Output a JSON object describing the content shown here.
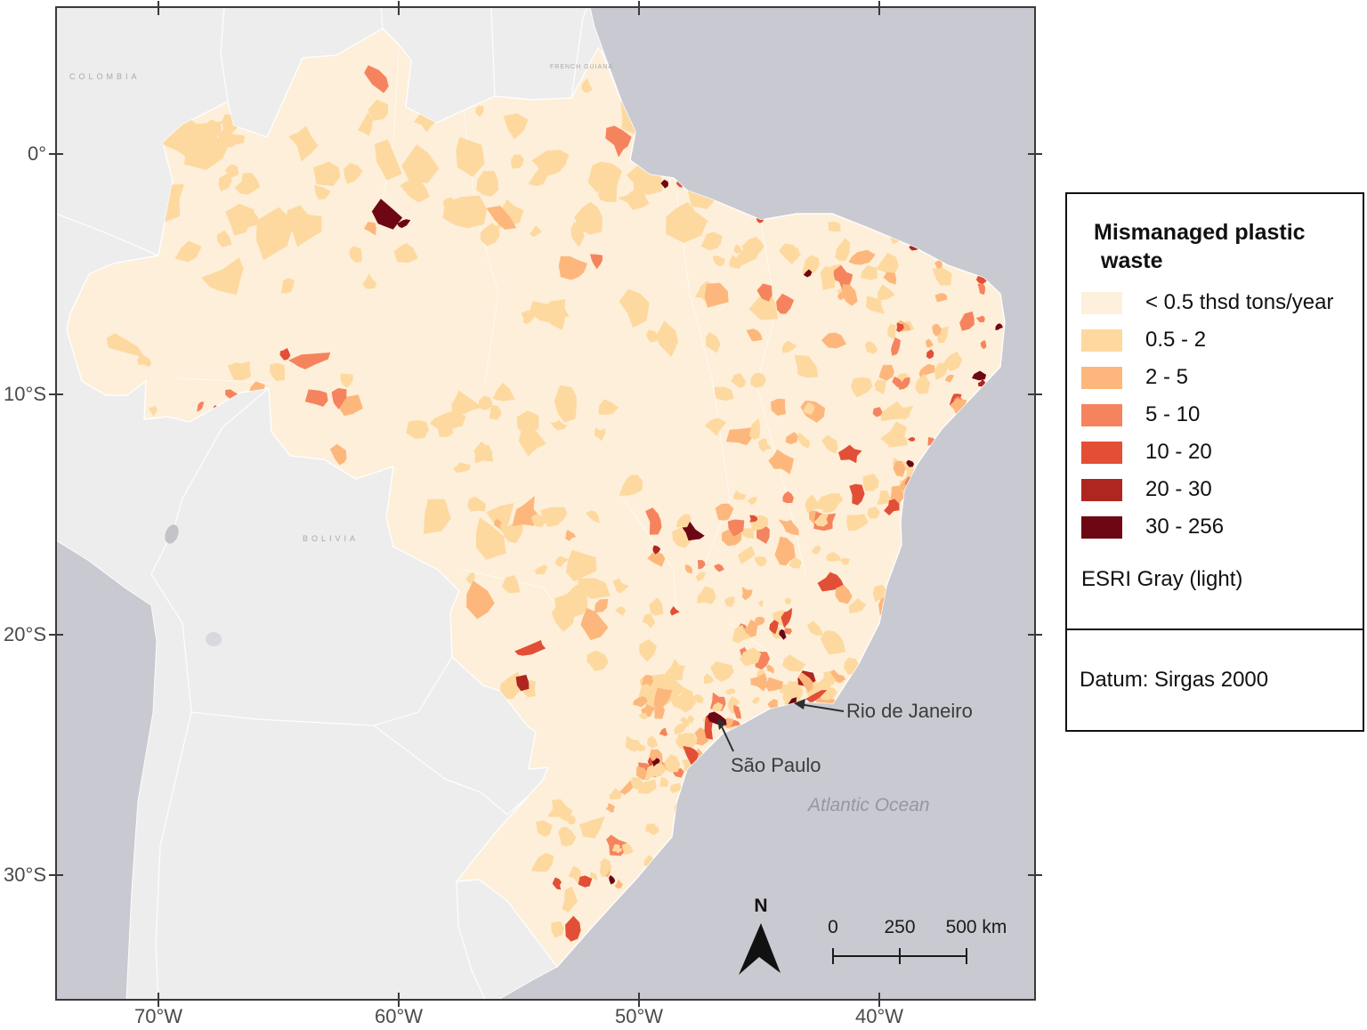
{
  "legend": {
    "title": "Mismanaged plastic waste",
    "classes": [
      {
        "label": "< 0.5 thsd tons/year",
        "color": "#fdf0dc"
      },
      {
        "label": "0.5 - 2",
        "color": "#fdd9a0"
      },
      {
        "label": "2 - 5",
        "color": "#fdb77c"
      },
      {
        "label": "5 - 10",
        "color": "#f5845e"
      },
      {
        "label": "10 - 20",
        "color": "#e24f36"
      },
      {
        "label": "20 - 30",
        "color": "#af2620"
      },
      {
        "label": "30 - 256",
        "color": "#6d0713"
      }
    ],
    "basemap_note": "ESRI Gray (light)"
  },
  "datum": {
    "text": "Datum: Sirgas 2000"
  },
  "axes": {
    "lat": [
      "0°",
      "10°S",
      "20°S",
      "30°S"
    ],
    "lon": [
      "70°W",
      "60°W",
      "50°W",
      "40°W"
    ]
  },
  "map": {
    "cities": [
      {
        "name": "Rio de Janeiro"
      },
      {
        "name": "São Paulo"
      }
    ],
    "ocean_label": "Atlantic Ocean",
    "region_labels": [
      "COLOMBIA",
      "BOLIVIA",
      "FRENCH GUIANA"
    ]
  },
  "scale_bar": {
    "labels": [
      "0",
      "250",
      "500 km"
    ]
  },
  "north_arrow": {
    "label": "N"
  },
  "colors": {
    "ocean": "#c9c9d1",
    "land": "#ededed",
    "brazil": "#fdefd9",
    "frame": "#3a3a3a"
  }
}
